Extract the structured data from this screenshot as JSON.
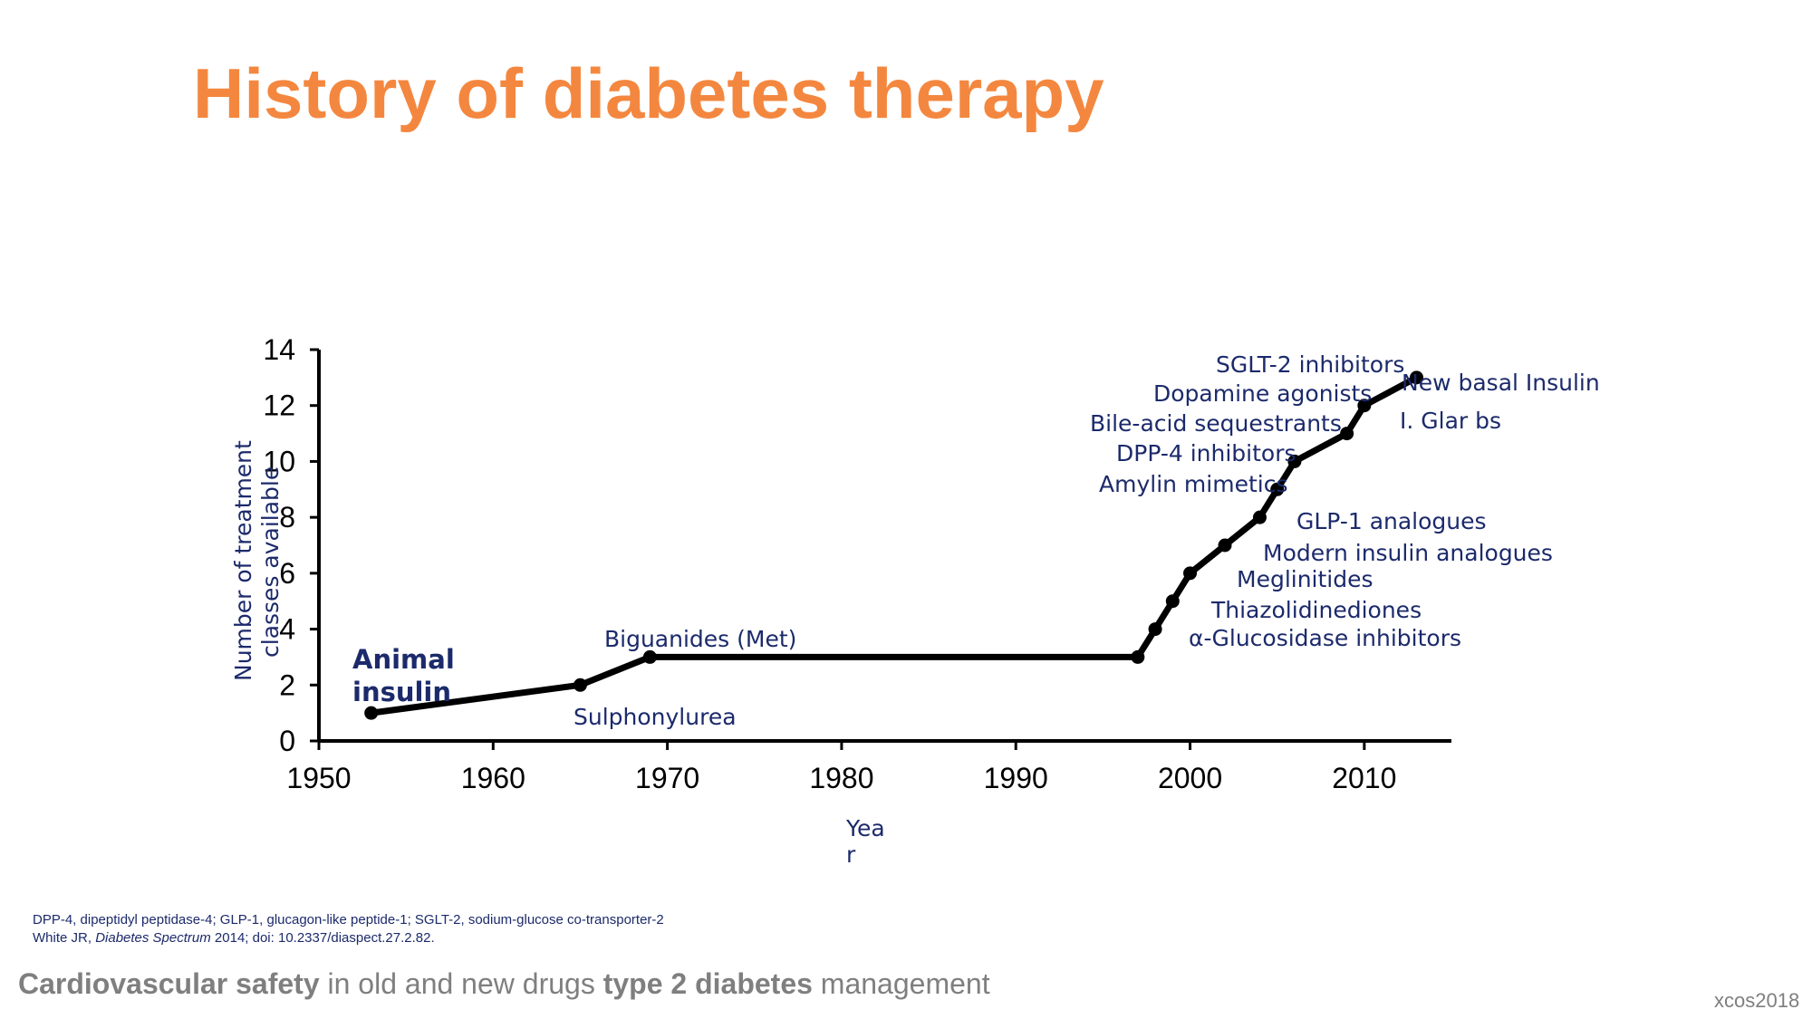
{
  "slide": {
    "title": "History of diabetes therapy",
    "footnote_line1": "DPP-4, dipeptidyl peptidase-4; GLP-1, glucagon-like peptide-1; SGLT-2, sodium-glucose co-transporter-2",
    "footnote_author": "White JR, ",
    "footnote_journal": "Diabetes Spectrum",
    "footnote_rest": " 2014; doi: 10.2337/diaspect.27.2.82.",
    "footer_bold1": "Cardiovascular safety",
    "footer_mid": " in old and new drugs ",
    "footer_bold2": "type 2 diabetes",
    "footer_end": " management",
    "footer_tag": "xcos2018"
  },
  "chart_data": {
    "type": "line",
    "x_label_line1": "Yea",
    "x_label_line2": "r",
    "y_label_line1": "Number of treatment",
    "y_label_line2": "classes available",
    "xlim": [
      1950,
      2015
    ],
    "ylim": [
      0,
      14
    ],
    "x_ticks": [
      "1950",
      "1960",
      "1970",
      "1980",
      "1990",
      "2000",
      "2010"
    ],
    "y_ticks": [
      "0",
      "2",
      "4",
      "6",
      "8",
      "10",
      "12",
      "14"
    ],
    "series": [
      {
        "color": "#000000",
        "points": [
          {
            "x": 1953,
            "y": 1
          },
          {
            "x": 1965,
            "y": 2
          },
          {
            "x": 1969,
            "y": 3
          },
          {
            "x": 1997,
            "y": 3
          },
          {
            "x": 1998,
            "y": 4
          },
          {
            "x": 1999,
            "y": 5
          },
          {
            "x": 2000,
            "y": 6
          },
          {
            "x": 2002,
            "y": 7
          },
          {
            "x": 2004,
            "y": 8
          },
          {
            "x": 2005,
            "y": 9
          },
          {
            "x": 2006,
            "y": 10
          },
          {
            "x": 2009,
            "y": 11
          },
          {
            "x": 2010,
            "y": 12
          },
          {
            "x": 2013,
            "y": 13
          }
        ]
      }
    ],
    "annotations": {
      "animal_insulin_1": "Animal",
      "animal_insulin_2": "insulin",
      "sulphonylurea": "Sulphonylurea",
      "biguanides": "Biguanides (Met)",
      "alpha_glucosidase": "α-Glucosidase inhibitors",
      "thiazolidinediones": "Thiazolidinediones",
      "meglinitides": "Meglinitides",
      "modern_insulin": "Modern insulin analogues",
      "glp1": "GLP-1 analogues",
      "amylin": "Amylin mimetics",
      "dpp4": "DPP-4 inhibitors",
      "bile_acid": "Bile-acid sequestrants",
      "dopamine": "Dopamine agonists",
      "sglt2": "SGLT-2 inhibitors",
      "new_basal": "New basal Insulin",
      "glar_bs": "I. Glar bs"
    }
  }
}
